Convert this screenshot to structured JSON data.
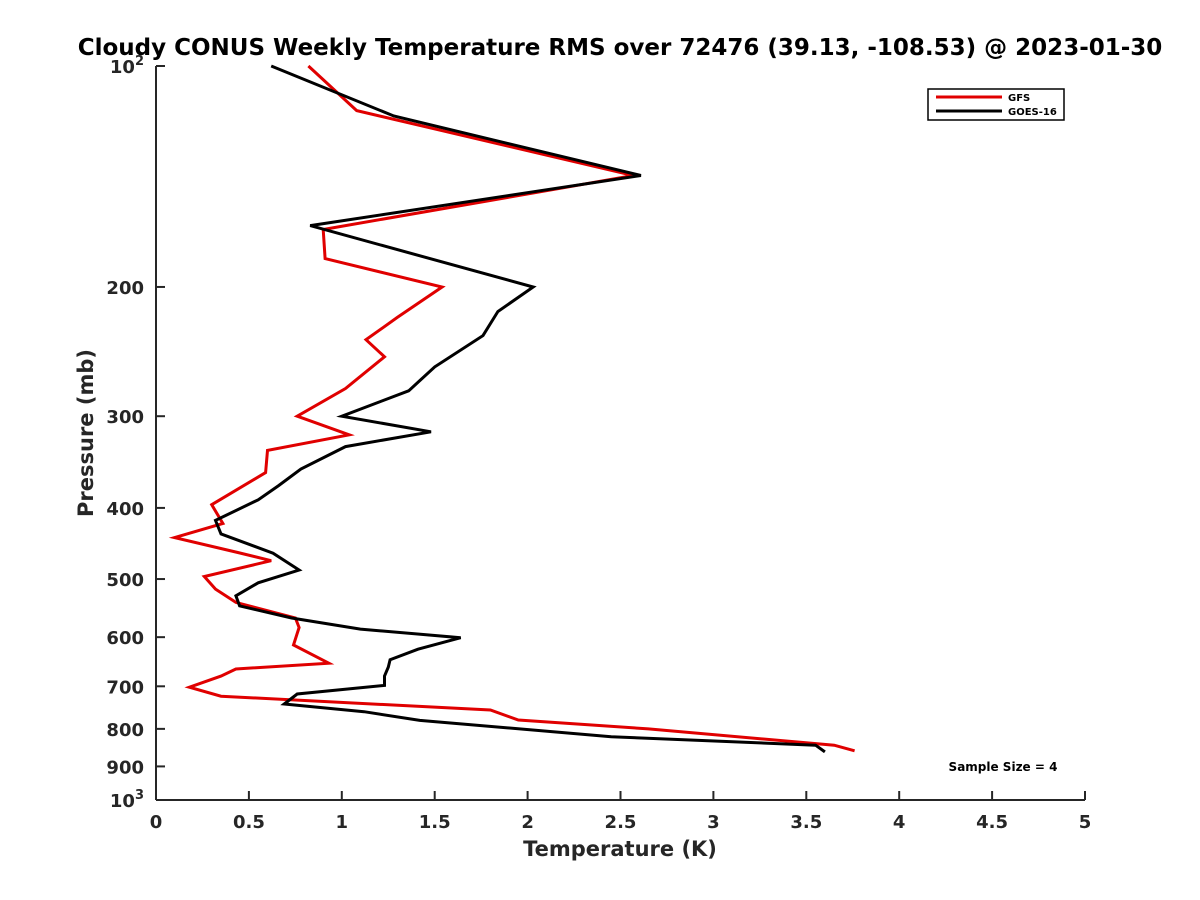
{
  "colors": {
    "gfs": "#e00000",
    "goes": "#000000",
    "axis": "#262626",
    "background": "#ffffff"
  },
  "chart_data": {
    "type": "line",
    "title": "Cloudy CONUS Weekly Temperature RMS over 72476 (39.13, -108.53) @ 2023-01-30",
    "xlabel": "Temperature (K)",
    "ylabel": "Pressure (mb)",
    "xlim": [
      0,
      5
    ],
    "ylim": [
      100,
      1000
    ],
    "yscale": "log",
    "y_reversed": true,
    "grid": false,
    "legend_placement": "top-right",
    "x_ticks": [
      "0",
      "0.5",
      "1",
      "1.5",
      "2",
      "2.5",
      "3",
      "3.5",
      "4",
      "4.5",
      "5"
    ],
    "y_ticks": [
      {
        "value": 100,
        "label": "10",
        "sup": "2"
      },
      {
        "value": 200,
        "label": "200",
        "sup": ""
      },
      {
        "value": 300,
        "label": "300",
        "sup": ""
      },
      {
        "value": 400,
        "label": "400",
        "sup": ""
      },
      {
        "value": 500,
        "label": "500",
        "sup": ""
      },
      {
        "value": 600,
        "label": "600",
        "sup": ""
      },
      {
        "value": 700,
        "label": "700",
        "sup": ""
      },
      {
        "value": 800,
        "label": "800",
        "sup": ""
      },
      {
        "value": 900,
        "label": "900",
        "sup": ""
      },
      {
        "value": 1000,
        "label": "10",
        "sup": "3"
      }
    ],
    "annotation": "Sample Size = 4",
    "series": [
      {
        "name": "GFS",
        "color": "#e00000",
        "points": [
          [
            0.82,
            100
          ],
          [
            1.08,
            115
          ],
          [
            2.57,
            141
          ],
          [
            0.9,
            167
          ],
          [
            0.91,
            183
          ],
          [
            1.54,
            200
          ],
          [
            1.3,
            220
          ],
          [
            1.13,
            236
          ],
          [
            1.23,
            249
          ],
          [
            1.02,
            275
          ],
          [
            0.76,
            300
          ],
          [
            1.04,
            318
          ],
          [
            0.6,
            334
          ],
          [
            0.59,
            358
          ],
          [
            0.3,
            396
          ],
          [
            0.36,
            420
          ],
          [
            0.1,
            439
          ],
          [
            0.44,
            460
          ],
          [
            0.62,
            472
          ],
          [
            0.26,
            496
          ],
          [
            0.32,
            516
          ],
          [
            0.43,
            538
          ],
          [
            0.75,
            565
          ],
          [
            0.77,
            582
          ],
          [
            0.74,
            615
          ],
          [
            0.93,
            651
          ],
          [
            0.43,
            663
          ],
          [
            0.35,
            678
          ],
          [
            0.18,
            702
          ],
          [
            0.35,
            722
          ],
          [
            1.8,
            754
          ],
          [
            1.95,
            778
          ],
          [
            2.65,
            800
          ],
          [
            3.65,
            842
          ],
          [
            3.76,
            857
          ]
        ]
      },
      {
        "name": "GOES-16",
        "color": "#000000",
        "points": [
          [
            0.62,
            100
          ],
          [
            1.28,
            117
          ],
          [
            2.61,
            141
          ],
          [
            0.83,
            165
          ],
          [
            2.03,
            200
          ],
          [
            1.84,
            216
          ],
          [
            1.76,
            233
          ],
          [
            1.5,
            257
          ],
          [
            1.36,
            277
          ],
          [
            1.0,
            300
          ],
          [
            1.48,
            315
          ],
          [
            1.02,
            330
          ],
          [
            0.78,
            354
          ],
          [
            0.66,
            373
          ],
          [
            0.55,
            390
          ],
          [
            0.32,
            416
          ],
          [
            0.35,
            434
          ],
          [
            0.63,
            461
          ],
          [
            0.77,
            486
          ],
          [
            0.55,
            506
          ],
          [
            0.43,
            527
          ],
          [
            0.45,
            544
          ],
          [
            0.73,
            565
          ],
          [
            1.1,
            585
          ],
          [
            1.64,
            601
          ],
          [
            1.41,
            623
          ],
          [
            1.26,
            644
          ],
          [
            1.25,
            659
          ],
          [
            1.23,
            678
          ],
          [
            1.23,
            698
          ],
          [
            0.76,
            717
          ],
          [
            0.69,
            740
          ],
          [
            1.12,
            758
          ],
          [
            1.42,
            779
          ],
          [
            2.45,
            820
          ],
          [
            3.55,
            842
          ],
          [
            3.6,
            860
          ]
        ]
      }
    ]
  }
}
